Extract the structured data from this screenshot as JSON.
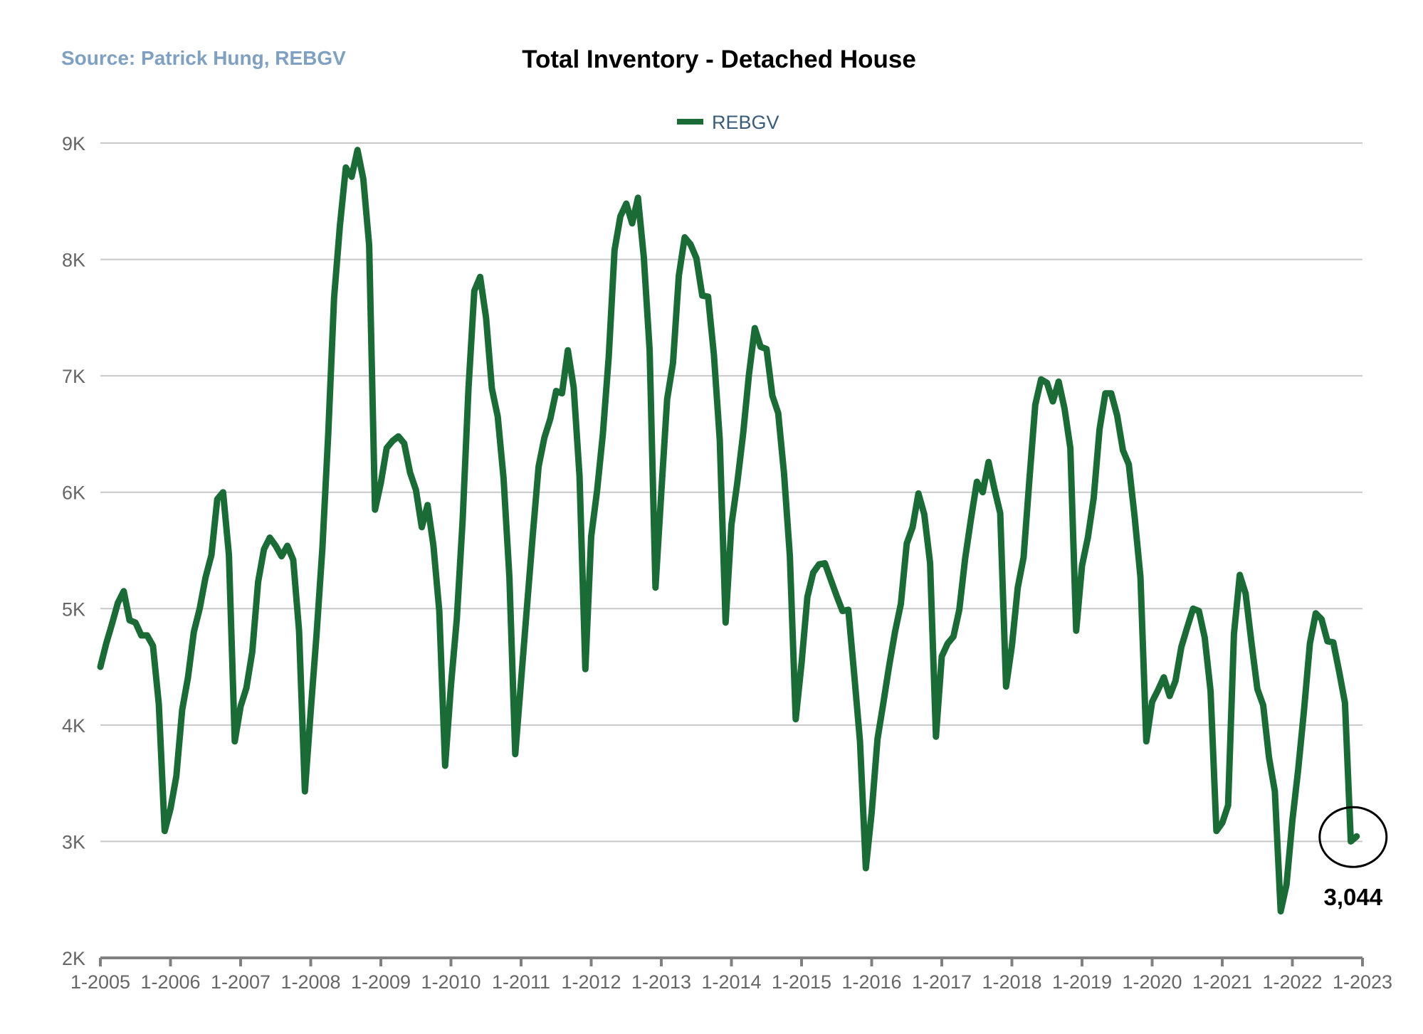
{
  "source": "Source:  Patrick Hung, REBGV",
  "chart_data": {
    "type": "line",
    "title": "Total Inventory - Detached House",
    "xlabel": "",
    "ylabel": "",
    "ylim": [
      2000,
      9000
    ],
    "yticks": [
      {
        "value": 2000,
        "label": "2K"
      },
      {
        "value": 3000,
        "label": "3K"
      },
      {
        "value": 4000,
        "label": "4K"
      },
      {
        "value": 5000,
        "label": "5K"
      },
      {
        "value": 6000,
        "label": "6K"
      },
      {
        "value": 7000,
        "label": "7K"
      },
      {
        "value": 8000,
        "label": "8K"
      },
      {
        "value": 9000,
        "label": "9K"
      }
    ],
    "xticks": [
      "1-2005",
      "1-2006",
      "1-2007",
      "1-2008",
      "1-2009",
      "1-2010",
      "1-2011",
      "1-2012",
      "1-2013",
      "1-2014",
      "1-2015",
      "1-2016",
      "1-2017",
      "1-2018",
      "1-2019",
      "1-2020",
      "1-2021",
      "1-2022",
      "1-2023"
    ],
    "grid": true,
    "legend_position": "top-center",
    "color": "#1a6b35",
    "series": [
      {
        "name": "REBGV",
        "start": "1-2005",
        "frequency": "monthly",
        "values": [
          4500,
          4700,
          4870,
          5050,
          5150,
          4900,
          4880,
          4770,
          4770,
          4680,
          4180,
          3090,
          3280,
          3560,
          4130,
          4410,
          4800,
          5000,
          5270,
          5460,
          5940,
          6000,
          5460,
          3860,
          4160,
          4320,
          4630,
          5230,
          5510,
          5610,
          5540,
          5450,
          5540,
          5420,
          4810,
          3430,
          4120,
          4780,
          5520,
          6500,
          7670,
          8290,
          8790,
          8710,
          8940,
          8690,
          8120,
          5850,
          6080,
          6380,
          6440,
          6480,
          6420,
          6170,
          6020,
          5700,
          5890,
          5540,
          4980,
          3650,
          4340,
          4910,
          5760,
          6890,
          7730,
          7850,
          7500,
          6890,
          6650,
          6120,
          5270,
          3750,
          4380,
          5010,
          5630,
          6220,
          6470,
          6630,
          6870,
          6850,
          7220,
          6900,
          6140,
          4480,
          5620,
          6010,
          6500,
          7160,
          8080,
          8370,
          8480,
          8310,
          8530,
          8020,
          7220,
          5180,
          6000,
          6800,
          7110,
          7860,
          8190,
          8130,
          8010,
          7690,
          7680,
          7180,
          6450,
          4880,
          5720,
          6080,
          6500,
          7010,
          7410,
          7250,
          7230,
          6830,
          6680,
          6160,
          5450,
          4050,
          4530,
          5100,
          5310,
          5380,
          5390,
          5250,
          5110,
          4980,
          4990,
          4440,
          3860,
          2770,
          3250,
          3880,
          4190,
          4510,
          4800,
          5040,
          5560,
          5700,
          5990,
          5810,
          5390,
          3900,
          4590,
          4700,
          4760,
          4990,
          5430,
          5770,
          6090,
          6000,
          6260,
          6030,
          5820,
          4330,
          4680,
          5180,
          5440,
          6110,
          6750,
          6970,
          6940,
          6780,
          6950,
          6720,
          6380,
          4810,
          5370,
          5610,
          5950,
          6540,
          6850,
          6850,
          6660,
          6360,
          6240,
          5790,
          5270,
          3860,
          4200,
          4300,
          4410,
          4250,
          4380,
          4670,
          4840,
          5000,
          4980,
          4750,
          4290,
          3090,
          3160,
          3310,
          4780,
          5290,
          5130,
          4710,
          4310,
          4170,
          3720,
          3430,
          2400,
          2630,
          3180,
          3620,
          4130,
          4700,
          4960,
          4910,
          4720,
          4710,
          4460,
          4190,
          3000,
          3044
        ]
      }
    ],
    "annotation": {
      "label": "3,044",
      "value": 3044,
      "x": "1-2023"
    }
  }
}
